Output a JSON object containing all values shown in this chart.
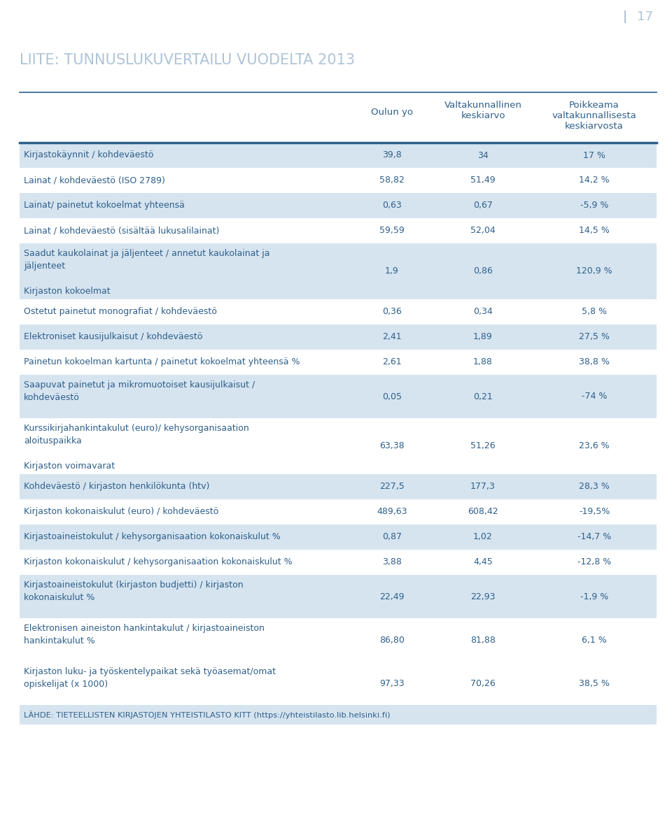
{
  "page_number": "17",
  "title": "LIITE: TUNNUSLUKUVERTAILU VUODELTA 2013",
  "col_headers": [
    "",
    "Oulun yo",
    "Valtakunnallinen\nkeskiarvo",
    "Poikkeama\nvaltakunnallisesta\nkeskiarvosta"
  ],
  "rows": [
    {
      "label": "Kirjastokäynnit / kohdeväestö",
      "val1": "39,8",
      "val2": "34",
      "val3": "17 %",
      "shaded": true,
      "label_lines": 1,
      "section_header": null
    },
    {
      "label": "Lainat / kohdeväestö (ISO 2789)",
      "val1": "58,82",
      "val2": "51,49",
      "val3": "14,2 %",
      "shaded": false,
      "label_lines": 1,
      "section_header": null
    },
    {
      "label": "Lainat/ painetut kokoelmat yhteensä",
      "val1": "0,63",
      "val2": "0,67",
      "val3": "-5,9 %",
      "shaded": true,
      "label_lines": 1,
      "section_header": null
    },
    {
      "label": "Lainat / kohdeväestö (sisältää lukusalilainat)",
      "val1": "59,59",
      "val2": "52,04",
      "val3": "14,5 %",
      "shaded": false,
      "label_lines": 1,
      "section_header": null
    },
    {
      "label": "Saadut kaukolainat ja jäljenteet / annetut kaukolainat ja\njäljenteet",
      "val1": "1,9",
      "val2": "0,86",
      "val3": "120,9 %",
      "shaded": true,
      "label_lines": 2,
      "section_header": "Kirjaston kokoelmat"
    },
    {
      "label": "Ostetut painetut monografiat / kohdeväestö",
      "val1": "0,36",
      "val2": "0,34",
      "val3": "5,8 %",
      "shaded": false,
      "label_lines": 1,
      "section_header": null
    },
    {
      "label": "Elektroniset kausijulkaisut / kohdeväestö",
      "val1": "2,41",
      "val2": "1,89",
      "val3": "27,5 %",
      "shaded": true,
      "label_lines": 1,
      "section_header": null
    },
    {
      "label": "Painetun kokoelman kartunta / painetut kokoelmat yhteensä %",
      "val1": "2,61",
      "val2": "1,88",
      "val3": "38,8 %",
      "shaded": false,
      "label_lines": 1,
      "section_header": null
    },
    {
      "label": "Saapuvat painetut ja mikromuotoiset kausijulkaisut /\nkohdeväestö",
      "val1": "0,05",
      "val2": "0,21",
      "val3": "-74 %",
      "shaded": true,
      "label_lines": 2,
      "section_header": null
    },
    {
      "label": "Kurssikirjahankintakulut (euro)/ kehysorganisaation\naloituspaikka",
      "val1": "63,38",
      "val2": "51,26",
      "val3": "23,6 %",
      "shaded": false,
      "label_lines": 2,
      "section_header": "Kirjaston voimavarat"
    },
    {
      "label": "Kohdeväestö / kirjaston henkilökunta (htv)",
      "val1": "227,5",
      "val2": "177,3",
      "val3": "28,3 %",
      "shaded": true,
      "label_lines": 1,
      "section_header": null
    },
    {
      "label": "Kirjaston kokonaiskulut (euro) / kohdeväestö",
      "val1": "489,63",
      "val2": "608,42",
      "val3": "-19,5%",
      "shaded": false,
      "label_lines": 1,
      "section_header": null
    },
    {
      "label": "Kirjastoaineistokulut / kehysorganisaation kokonaiskulut %",
      "val1": "0,87",
      "val2": "1,02",
      "val3": "-14,7 %",
      "shaded": true,
      "label_lines": 1,
      "section_header": null
    },
    {
      "label": "Kirjaston kokonaiskulut / kehysorganisaation kokonaiskulut %",
      "val1": "3,88",
      "val2": "4,45",
      "val3": "-12,8 %",
      "shaded": false,
      "label_lines": 1,
      "section_header": null
    },
    {
      "label": "Kirjastoaineistokulut (kirjaston budjetti) / kirjaston\nkokonaiskulut %",
      "val1": "22,49",
      "val2": "22,93",
      "val3": "-1,9 %",
      "shaded": true,
      "label_lines": 2,
      "section_header": null
    },
    {
      "label": "Elektronisen aineiston hankintakulut / kirjastoaineiston\nhankintakulut %",
      "val1": "86,80",
      "val2": "81,88",
      "val3": "6,1 %",
      "shaded": false,
      "label_lines": 2,
      "section_header": null
    },
    {
      "label": "Kirjaston luku- ja työskentelypaikat sekä työasemat/omat\nopiskelijat (x 1000)",
      "val1": "97,33",
      "val2": "70,26",
      "val3": "38,5 %",
      "shaded": false,
      "label_lines": 2,
      "section_header": null
    }
  ],
  "footer": "LÄHDE: TIETEELLISTEN KIRJASTOJEN YHTEISTILASTO KITT (https://yhteistilasto.lib.helsinki.fi)",
  "bg_color": "#ffffff",
  "shaded_color": "#d6e4f0",
  "text_color": "#2e5f8a",
  "header_line_color": "#2e5f8a",
  "title_color": "#b0c4d8",
  "page_num_color": "#b0c4d8",
  "footer_bg": "#d6e4f0"
}
